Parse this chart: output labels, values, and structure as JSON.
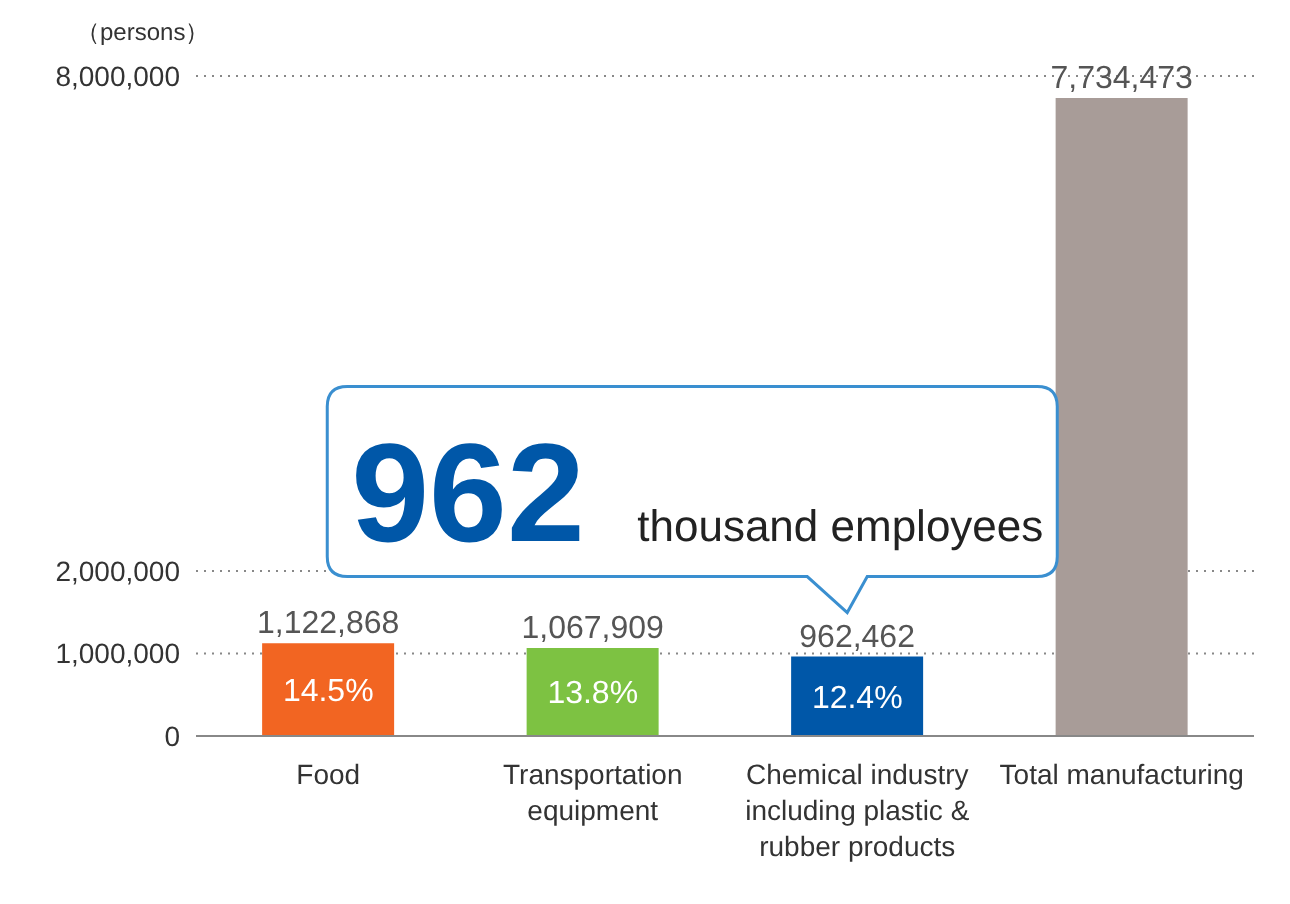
{
  "chart_data": {
    "type": "bar",
    "ylabel": "（persons）",
    "categories": [
      "Food",
      "Transportation equipment",
      "Chemical industry including plastic & rubber products",
      "Total manufacturing"
    ],
    "values": [
      1122868,
      1067909,
      962462,
      7734473
    ],
    "value_labels": [
      "1,122,868",
      "1,067,909",
      "962,462",
      "7,734,473"
    ],
    "colors": [
      "#f26522",
      "#7dc242",
      "#0057a8",
      "#a89c98"
    ],
    "ylim": [
      0,
      8000000
    ],
    "yticks": [
      0,
      {
        "value": 1000000,
        "label": "1,000,000"
      },
      {
        "value": 2000000,
        "label": "2,000,000"
      },
      {
        "value": 8000000,
        "label": "8,000,000"
      }
    ],
    "grid": "y",
    "annotations": [
      "14.5%",
      "13.8%",
      "12.4%",
      {
        "text": "962",
        "x": "Chemical industry including plastic & rubber products",
        "y": 962462
      },
      "thousand employees"
    ]
  }
}
